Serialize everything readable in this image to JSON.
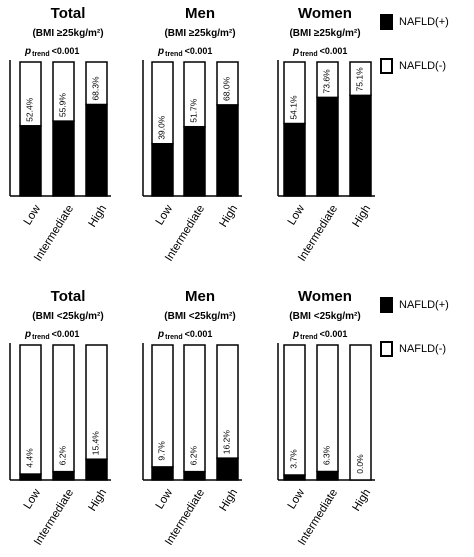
{
  "chart_data": [
    {
      "type": "stacked-bar",
      "title": "Total",
      "subtitle": "(BMI ≥25kg/m²)",
      "annotation": {
        "p": "p",
        "sub": "trend",
        "text": "<0.001"
      },
      "categories": [
        "Low",
        "Intermediate",
        "High"
      ],
      "ylim": [
        0,
        100
      ],
      "series": [
        {
          "name": "NAFLD(+)",
          "color": "#000000",
          "values": [
            52.4,
            55.9,
            68.3
          ],
          "value_labels": [
            "52.4%",
            "55.9%",
            "68.3%"
          ]
        },
        {
          "name": "NAFLD(-)",
          "color": "#ffffff",
          "values": [
            47.6,
            44.1,
            31.7
          ]
        }
      ]
    },
    {
      "type": "stacked-bar",
      "title": "Men",
      "subtitle": "(BMI ≥25kg/m²)",
      "annotation": {
        "p": "p",
        "sub": "trend",
        "text": "<0.001"
      },
      "categories": [
        "Low",
        "Intermediate",
        "High"
      ],
      "ylim": [
        0,
        100
      ],
      "series": [
        {
          "name": "NAFLD(+)",
          "color": "#000000",
          "values": [
            39.0,
            51.7,
            68.0
          ],
          "value_labels": [
            "39.0%",
            "51.7%",
            "68.0%"
          ]
        },
        {
          "name": "NAFLD(-)",
          "color": "#ffffff",
          "values": [
            61.0,
            48.3,
            32.0
          ]
        }
      ]
    },
    {
      "type": "stacked-bar",
      "title": "Women",
      "subtitle": "(BMI ≥25kg/m²)",
      "annotation": {
        "p": "p",
        "sub": "trend",
        "text": "<0.001"
      },
      "categories": [
        "Low",
        "Intermediate",
        "High"
      ],
      "ylim": [
        0,
        100
      ],
      "legend": true,
      "series": [
        {
          "name": "NAFLD(+)",
          "color": "#000000",
          "values": [
            54.1,
            73.6,
            75.1
          ],
          "value_labels": [
            "54.1%",
            "73.6%",
            "75.1%"
          ]
        },
        {
          "name": "NAFLD(-)",
          "color": "#ffffff",
          "values": [
            45.9,
            26.4,
            24.9
          ]
        }
      ]
    },
    {
      "type": "stacked-bar",
      "title": "Total",
      "subtitle": "(BMI <25kg/m²)",
      "annotation": {
        "p": "p",
        "sub": "trend",
        "text": "<0.001"
      },
      "categories": [
        "Low",
        "Intermediate",
        "High"
      ],
      "ylim": [
        0,
        100
      ],
      "series": [
        {
          "name": "NAFLD(+)",
          "color": "#000000",
          "values": [
            4.4,
            6.2,
            15.4
          ],
          "value_labels": [
            "4.4%",
            "6.2%",
            "15.4%"
          ]
        },
        {
          "name": "NAFLD(-)",
          "color": "#ffffff",
          "values": [
            95.6,
            93.8,
            84.6
          ]
        }
      ]
    },
    {
      "type": "stacked-bar",
      "title": "Men",
      "subtitle": "(BMI <25kg/m²)",
      "annotation": {
        "p": "p",
        "sub": "trend",
        "text": "<0.001"
      },
      "categories": [
        "Low",
        "Intermediate",
        "High"
      ],
      "ylim": [
        0,
        100
      ],
      "series": [
        {
          "name": "NAFLD(+)",
          "color": "#000000",
          "values": [
            9.7,
            6.2,
            16.2
          ],
          "value_labels": [
            "9.7%",
            "6.2%",
            "16.2%"
          ]
        },
        {
          "name": "NAFLD(-)",
          "color": "#ffffff",
          "values": [
            90.3,
            93.8,
            83.8
          ]
        }
      ]
    },
    {
      "type": "stacked-bar",
      "title": "Women",
      "subtitle": "(BMI <25kg/m²)",
      "annotation": {
        "p": "p",
        "sub": "trend",
        "text": "<0.001"
      },
      "categories": [
        "Low",
        "Intermediate",
        "High"
      ],
      "ylim": [
        0,
        100
      ],
      "legend": true,
      "series": [
        {
          "name": "NAFLD(+)",
          "color": "#000000",
          "values": [
            3.7,
            6.3,
            0.0
          ],
          "value_labels": [
            "3.7%",
            "6.3%",
            "0.0%"
          ]
        },
        {
          "name": "NAFLD(-)",
          "color": "#ffffff",
          "values": [
            96.3,
            93.7,
            100.0
          ]
        }
      ]
    }
  ]
}
